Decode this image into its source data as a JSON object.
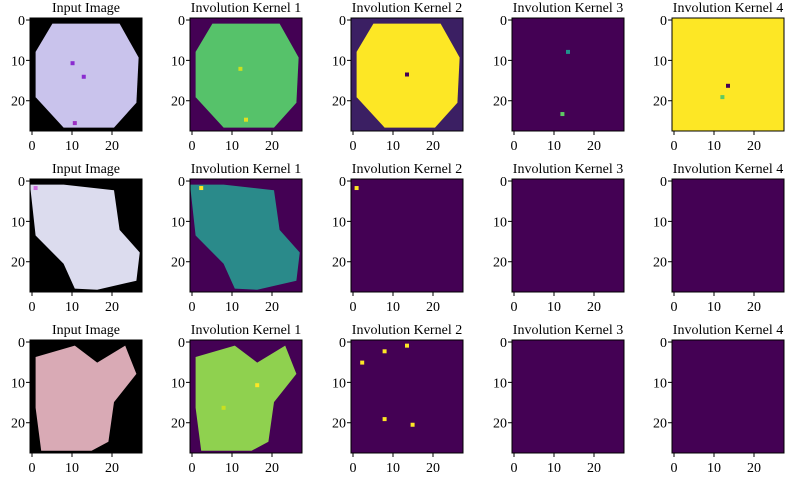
{
  "chart_data": [
    {
      "type": "image",
      "title": "Input Image",
      "xlim": [
        -0.5,
        27.5
      ],
      "ylim": [
        27.5,
        -0.5
      ],
      "xticks": [
        0,
        10,
        20
      ],
      "yticks": [
        0,
        10,
        20
      ]
    },
    {
      "type": "image",
      "title": "Involution Kernel 1",
      "xlim": [
        -0.5,
        27.5
      ],
      "ylim": [
        27.5,
        -0.5
      ],
      "xticks": [
        0,
        10,
        20
      ],
      "yticks": [
        0,
        10,
        20
      ]
    },
    {
      "type": "image",
      "title": "Involution Kernel 2",
      "xlim": [
        -0.5,
        27.5
      ],
      "ylim": [
        27.5,
        -0.5
      ],
      "xticks": [
        0,
        10,
        20
      ],
      "yticks": [
        0,
        10,
        20
      ]
    },
    {
      "type": "image",
      "title": "Involution Kernel 3",
      "xlim": [
        -0.5,
        27.5
      ],
      "ylim": [
        27.5,
        -0.5
      ],
      "xticks": [
        0,
        10,
        20
      ],
      "yticks": [
        0,
        10,
        20
      ]
    },
    {
      "type": "image",
      "title": "Involution Kernel 4",
      "xlim": [
        -0.5,
        27.5
      ],
      "ylim": [
        27.5,
        -0.5
      ],
      "xticks": [
        0,
        10,
        20
      ],
      "yticks": [
        0,
        10,
        20
      ]
    },
    {
      "type": "image",
      "title": "Input Image",
      "xlim": [
        -0.5,
        27.5
      ],
      "ylim": [
        27.5,
        -0.5
      ],
      "xticks": [
        0,
        10,
        20
      ],
      "yticks": [
        0,
        10,
        20
      ]
    },
    {
      "type": "image",
      "title": "Involution Kernel 1",
      "xlim": [
        -0.5,
        27.5
      ],
      "ylim": [
        27.5,
        -0.5
      ],
      "xticks": [
        0,
        10,
        20
      ],
      "yticks": [
        0,
        10,
        20
      ]
    },
    {
      "type": "image",
      "title": "Involution Kernel 2",
      "xlim": [
        -0.5,
        27.5
      ],
      "ylim": [
        27.5,
        -0.5
      ],
      "xticks": [
        0,
        10,
        20
      ],
      "yticks": [
        0,
        10,
        20
      ]
    },
    {
      "type": "image",
      "title": "Involution Kernel 3",
      "xlim": [
        -0.5,
        27.5
      ],
      "ylim": [
        27.5,
        -0.5
      ],
      "xticks": [
        0,
        10,
        20
      ],
      "yticks": [
        0,
        10,
        20
      ]
    },
    {
      "type": "image",
      "title": "Involution Kernel 4",
      "xlim": [
        -0.5,
        27.5
      ],
      "ylim": [
        27.5,
        -0.5
      ],
      "xticks": [
        0,
        10,
        20
      ],
      "yticks": [
        0,
        10,
        20
      ]
    },
    {
      "type": "image",
      "title": "Input Image",
      "xlim": [
        -0.5,
        27.5
      ],
      "ylim": [
        27.5,
        -0.5
      ],
      "xticks": [
        0,
        10,
        20
      ],
      "yticks": [
        0,
        10,
        20
      ]
    },
    {
      "type": "image",
      "title": "Involution Kernel 1",
      "xlim": [
        -0.5,
        27.5
      ],
      "ylim": [
        27.5,
        -0.5
      ],
      "xticks": [
        0,
        10,
        20
      ],
      "yticks": [
        0,
        10,
        20
      ]
    },
    {
      "type": "image",
      "title": "Involution Kernel 2",
      "xlim": [
        -0.5,
        27.5
      ],
      "ylim": [
        27.5,
        -0.5
      ],
      "xticks": [
        0,
        10,
        20
      ],
      "yticks": [
        0,
        10,
        20
      ]
    },
    {
      "type": "image",
      "title": "Involution Kernel 3",
      "xlim": [
        -0.5,
        27.5
      ],
      "ylim": [
        27.5,
        -0.5
      ],
      "xticks": [
        0,
        10,
        20
      ],
      "yticks": [
        0,
        10,
        20
      ]
    },
    {
      "type": "image",
      "title": "Involution Kernel 4",
      "xlim": [
        -0.5,
        27.5
      ],
      "ylim": [
        27.5,
        -0.5
      ],
      "xticks": [
        0,
        10,
        20
      ],
      "yticks": [
        0,
        10,
        20
      ]
    }
  ]
}
